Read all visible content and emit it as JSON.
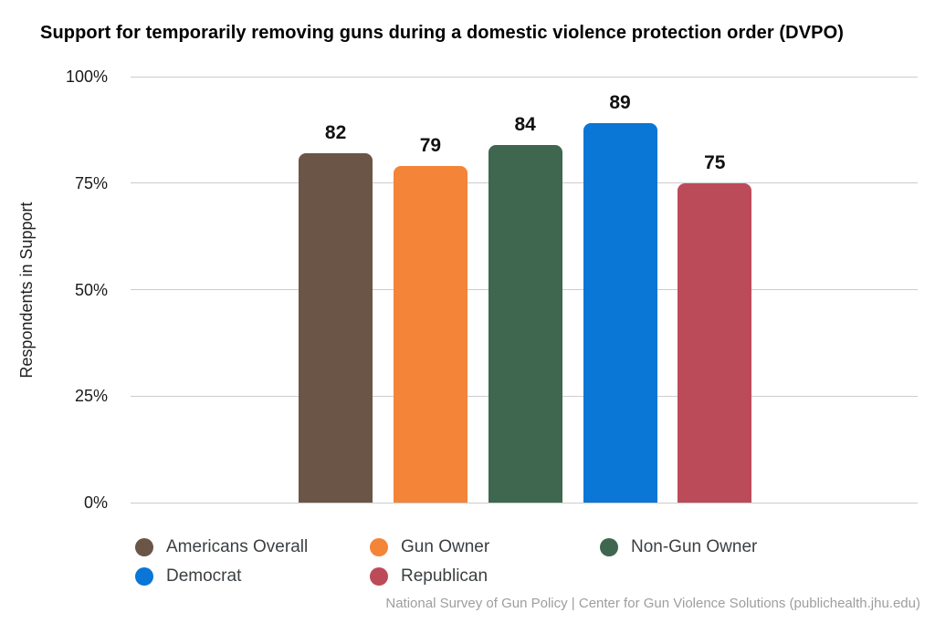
{
  "chart_data": {
    "type": "bar",
    "title": "Support for temporarily removing guns during a domestic violence protection order (DVPO)",
    "ylabel": "Respondents in Support",
    "xlabel": "",
    "ylim": [
      0,
      100
    ],
    "yticks": [
      0,
      25,
      50,
      75,
      100
    ],
    "ytick_labels": [
      "0%",
      "25%",
      "50%",
      "75%",
      "100%"
    ],
    "grid": true,
    "legend_position": "bottom",
    "categories": [
      "Americans Overall",
      "Gun Owner",
      "Non-Gun Owner",
      "Democrat",
      "Republican"
    ],
    "values": [
      82,
      79,
      84,
      89,
      75
    ],
    "value_labels": [
      "82",
      "79",
      "84",
      "89",
      "75"
    ],
    "colors": [
      "#6B5547",
      "#F48438",
      "#3F664F",
      "#0A76D5",
      "#BC4B59"
    ],
    "source": "National Survey of Gun Policy | Center for Gun Violence Solutions (publichealth.jhu.edu)"
  }
}
